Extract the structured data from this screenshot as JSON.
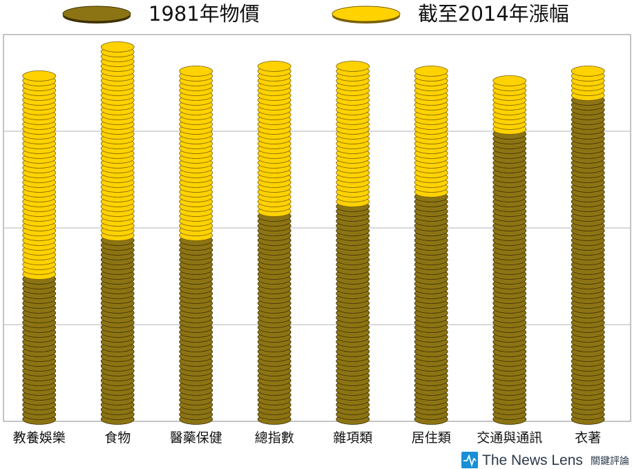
{
  "chart_data": {
    "type": "bar",
    "stacked": true,
    "categories": [
      "教養娛樂",
      "食物",
      "醫藥保健",
      "總指數",
      "雜項類",
      "居住類",
      "交通與通訊",
      "衣著"
    ],
    "series": [
      {
        "name": "1981年物價",
        "values": [
          30,
          38,
          38,
          43,
          45,
          47,
          60,
          67
        ]
      },
      {
        "name": "截至2014年漲幅",
        "values": [
          42,
          40,
          35,
          31,
          29,
          26,
          11,
          6
        ]
      }
    ],
    "ylim": [
      0,
      80
    ],
    "grid": true,
    "legend": "top",
    "colors": {
      "base": "#8c7414",
      "base_stroke": "#3d3000",
      "increase": "#ffd200",
      "increase_stroke": "#7a5f00",
      "grid": "#b0b0b0",
      "axis": "#888888"
    }
  },
  "brand": {
    "name": "The News Lens",
    "sub": "關鍵評論",
    "icon": "pulse-icon",
    "color": "#1a8fd6"
  }
}
